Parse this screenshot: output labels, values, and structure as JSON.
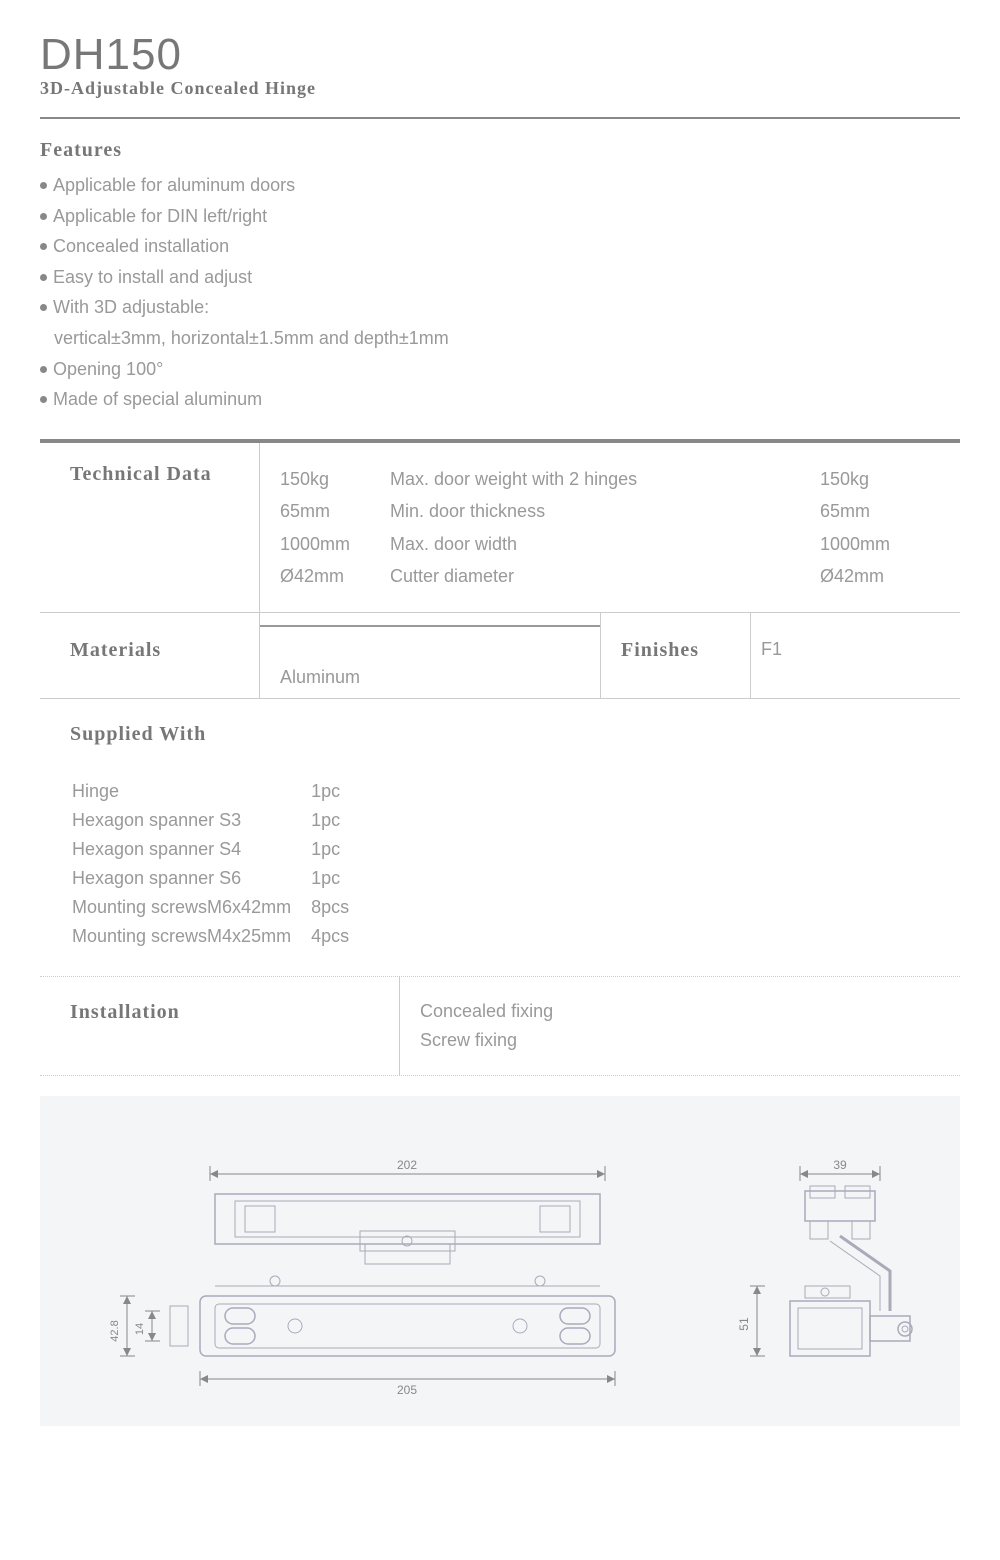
{
  "product": {
    "model": "DH150",
    "subtitle": "3D-Adjustable Concealed Hinge"
  },
  "sections": {
    "features_label": "Features",
    "technical_label": "Technical Data",
    "materials_label": "Materials",
    "finishes_label": "Finishes",
    "supplied_label": "Supplied With",
    "installation_label": "Installation"
  },
  "features": [
    {
      "text": "Applicable for aluminum doors",
      "bulleted": true
    },
    {
      "text": "Applicable for DIN left/right",
      "bulleted": true
    },
    {
      "text": "Concealed installation",
      "bulleted": true
    },
    {
      "text": "Easy to install and adjust",
      "bulleted": true
    },
    {
      "text": "With 3D adjustable:",
      "bulleted": true
    },
    {
      "text": "vertical±3mm, horizontal±1.5mm and depth±1mm",
      "bulleted": false,
      "indent": true
    },
    {
      "text": "Opening 100°",
      "bulleted": true
    },
    {
      "text": "Made of special aluminum",
      "bulleted": true
    }
  ],
  "technical": {
    "col1": [
      "150kg",
      "65mm",
      "1000mm",
      "Ø42mm"
    ],
    "col2": [
      "Max. door weight with 2 hinges",
      "Min. door thickness",
      "Max. door width",
      "Cutter diameter"
    ],
    "col3": [
      "150kg",
      "65mm",
      "1000mm",
      "Ø42mm"
    ]
  },
  "materials": {
    "value": "Aluminum"
  },
  "finishes": {
    "value": "F1"
  },
  "supplied": [
    {
      "item": "Hinge",
      "qty": "1pc"
    },
    {
      "item": "Hexagon spanner S3",
      "qty": "1pc"
    },
    {
      "item": "Hexagon spanner S4",
      "qty": "1pc"
    },
    {
      "item": "Hexagon spanner S6",
      "qty": "1pc"
    },
    {
      "item": "Mounting screwsM6x42mm",
      "qty": "8pcs"
    },
    {
      "item": "Mounting screwsM4x25mm",
      "qty": "4pcs"
    }
  ],
  "installation": [
    "Concealed fixing",
    "Screw fixing"
  ],
  "diagram": {
    "bg_color": "#f3f5f6",
    "stroke_color": "#aab",
    "dim_color": "#888",
    "front": {
      "width_top": "202",
      "width_bottom": "205",
      "height_outer": "42.8",
      "height_inner": "14"
    },
    "side": {
      "width_top": "39",
      "height": "51"
    }
  }
}
